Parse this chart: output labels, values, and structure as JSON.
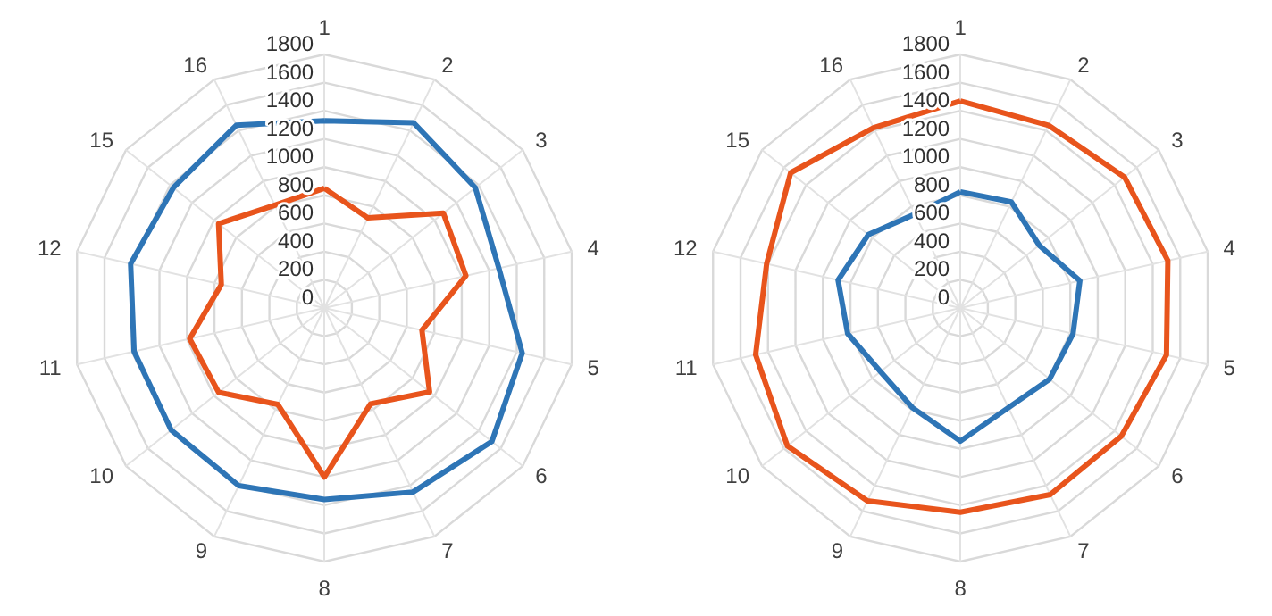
{
  "chart_data": [
    {
      "type": "radar",
      "categories": [
        "1",
        "2",
        "3",
        "4",
        "5",
        "6",
        "7",
        "8",
        "9",
        "10",
        "11",
        "12",
        "15",
        "16"
      ],
      "ylim": [
        0,
        1800
      ],
      "yticks": [
        0,
        200,
        400,
        600,
        800,
        1000,
        1200,
        1400,
        1600,
        1800
      ],
      "grid": true,
      "marker": "none",
      "line_style": "solid",
      "series": [
        {
          "color": "#2e75b6",
          "values": [
            1330,
            1460,
            1370,
            1270,
            1440,
            1520,
            1450,
            1360,
            1400,
            1390,
            1385,
            1410,
            1370,
            1440
          ]
        },
        {
          "color": "#e8541c",
          "values": [
            850,
            710,
            1080,
            1030,
            710,
            955,
            755,
            1200,
            760,
            960,
            980,
            750,
            960,
            810
          ]
        }
      ]
    },
    {
      "type": "radar",
      "categories": [
        "1",
        "2",
        "3",
        "4",
        "5",
        "6",
        "7",
        "8",
        "9",
        "10",
        "11",
        "12",
        "15",
        "16"
      ],
      "ylim": [
        0,
        1800
      ],
      "yticks": [
        0,
        200,
        400,
        600,
        800,
        1000,
        1200,
        1400,
        1600,
        1800
      ],
      "grid": true,
      "marker": "none",
      "line_style": "solid",
      "series": [
        {
          "color": "#e8541c",
          "values": [
            1470,
            1440,
            1490,
            1510,
            1500,
            1460,
            1470,
            1450,
            1520,
            1570,
            1490,
            1410,
            1540,
            1420
          ]
        },
        {
          "color": "#2e75b6",
          "values": [
            825,
            835,
            715,
            870,
            820,
            810,
            785,
            945,
            785,
            725,
            820,
            890,
            835,
            740
          ]
        }
      ]
    }
  ]
}
